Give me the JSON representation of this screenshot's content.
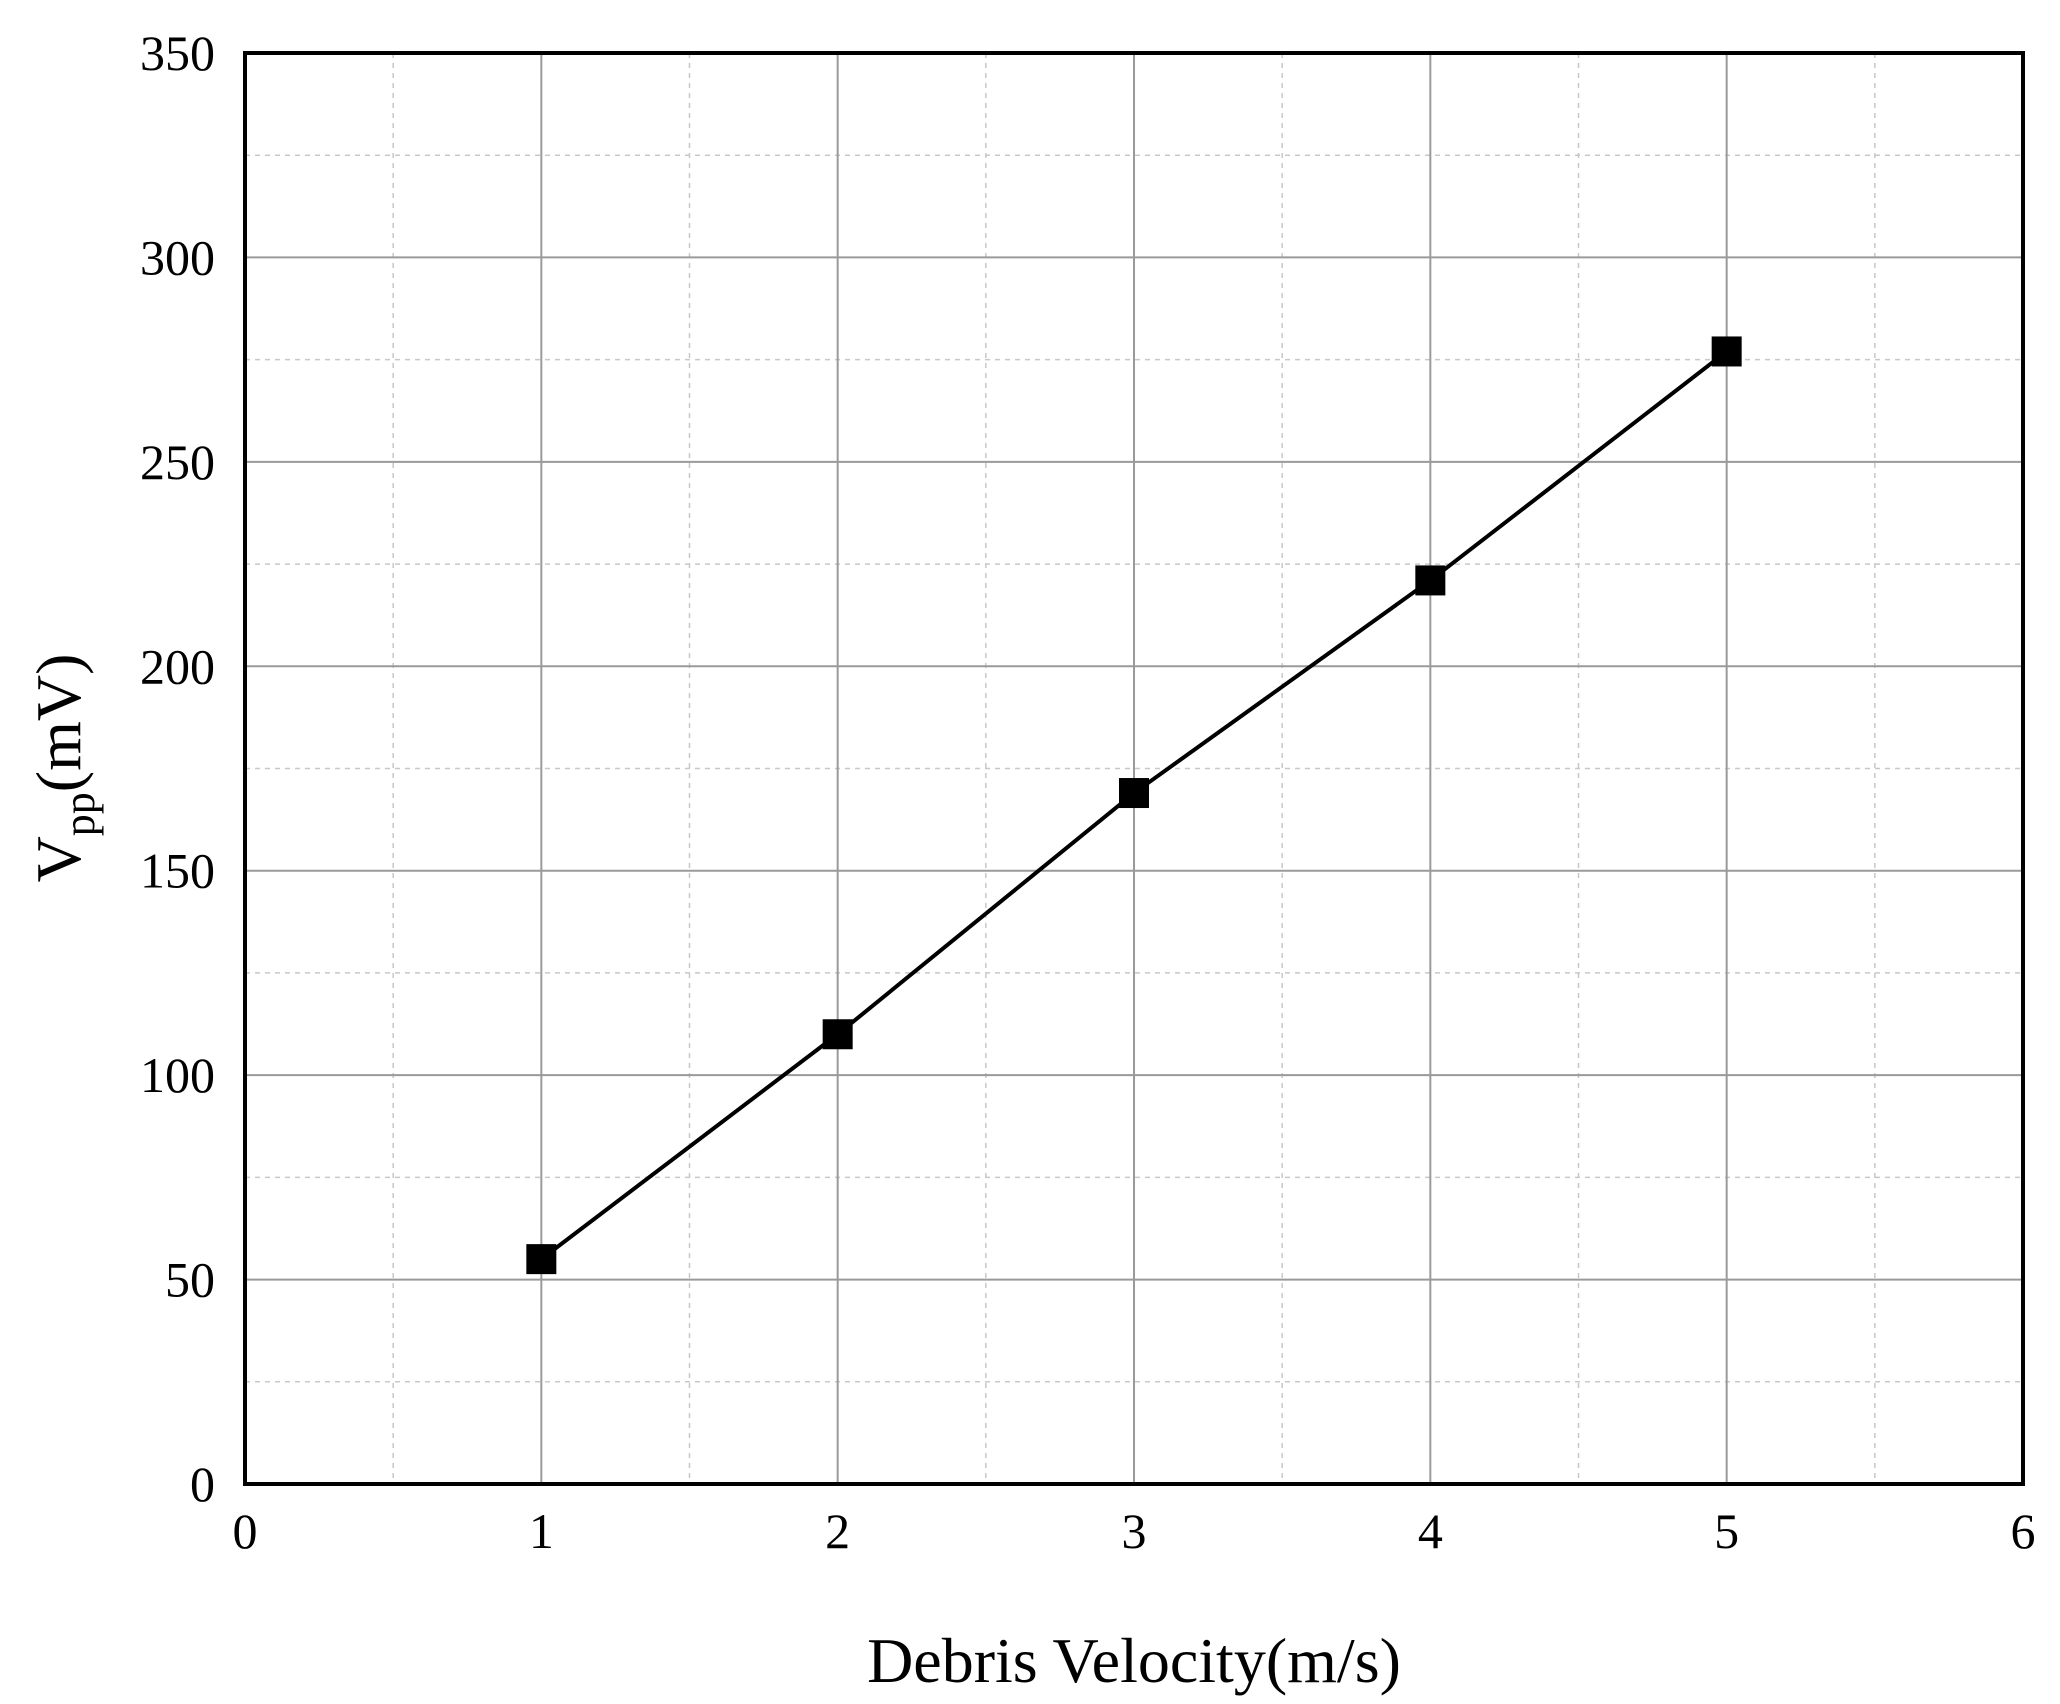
{
  "chart_data": {
    "type": "line",
    "title": "",
    "xlabel": "Debris Velocity(m/s)",
    "ylabel": {
      "main": "V",
      "sub": "pp",
      "unit": "(mV)"
    },
    "xlim": [
      0,
      6
    ],
    "ylim": [
      0,
      350
    ],
    "xticks": [
      0,
      1,
      2,
      3,
      4,
      5,
      6
    ],
    "yticks": [
      0,
      50,
      100,
      150,
      200,
      250,
      300,
      350
    ],
    "x_minor_grid": [
      0.5,
      1.5,
      2.5,
      3.5,
      4.5,
      5.5
    ],
    "y_minor_grid": [
      25,
      75,
      125,
      175,
      225,
      275,
      325
    ],
    "grid": true,
    "series": [
      {
        "color": "#000000",
        "marker": "square",
        "x": [
          1,
          2,
          3,
          4,
          5
        ],
        "y": [
          55,
          110,
          169,
          221,
          277
        ]
      }
    ]
  }
}
